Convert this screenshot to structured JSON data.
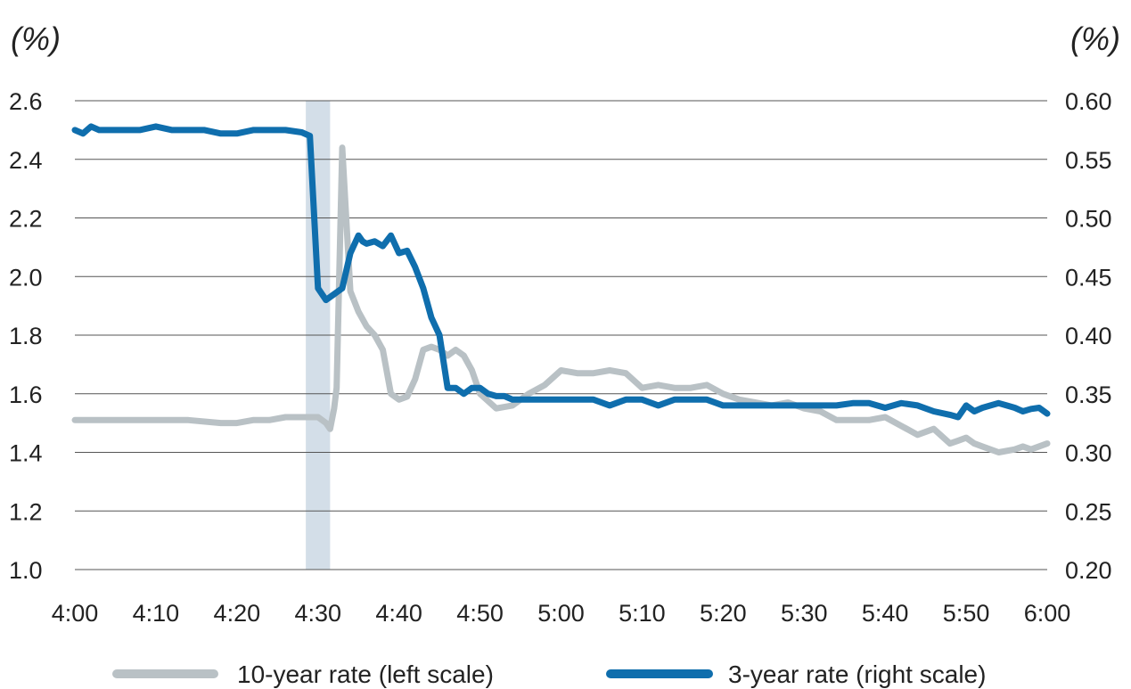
{
  "chart_data": {
    "type": "line",
    "left_unit": "(%)",
    "right_unit": "(%)",
    "x_ticks": [
      "4:00",
      "4:10",
      "4:20",
      "4:30",
      "4:40",
      "4:50",
      "5:00",
      "5:10",
      "5:20",
      "5:30",
      "5:40",
      "5:50",
      "6:00"
    ],
    "y_left_ticks": [
      "2.6",
      "2.4",
      "2.2",
      "2.0",
      "1.8",
      "1.6",
      "1.4",
      "1.2",
      "1.0"
    ],
    "y_right_ticks": [
      "0.60",
      "0.55",
      "0.50",
      "0.45",
      "0.40",
      "0.35",
      "0.30",
      "0.25",
      "0.20"
    ],
    "xlim_minutes": [
      0,
      120
    ],
    "ylim_left": [
      1.0,
      2.6
    ],
    "ylim_right": [
      0.2,
      0.6
    ],
    "grid": true,
    "legend_position": "bottom",
    "shaded_region_minutes": [
      28.5,
      31.5
    ],
    "colors": {
      "ten_year": "#b9c1c5",
      "three_year": "#0f6ead",
      "shade": "#d3dee8"
    },
    "series": [
      {
        "name": "10-year rate (left scale)",
        "axis": "left",
        "color": "#b9c1c5",
        "x": [
          0,
          5,
          10,
          14,
          18,
          20,
          22,
          24,
          26,
          28,
          30,
          31,
          31.5,
          32,
          32.3,
          33,
          34,
          35,
          36,
          37,
          38,
          39,
          40,
          41,
          42,
          43,
          44,
          45,
          46,
          47,
          48,
          49,
          50,
          52,
          54,
          56,
          58,
          60,
          62,
          64,
          66,
          68,
          70,
          72,
          74,
          76,
          78,
          80,
          82,
          84,
          86,
          88,
          90,
          92,
          94,
          96,
          98,
          100,
          102,
          104,
          106,
          108,
          109,
          110,
          111,
          112,
          114,
          116,
          117,
          118,
          120
        ],
        "y": [
          1.51,
          1.51,
          1.51,
          1.51,
          1.5,
          1.5,
          1.51,
          1.51,
          1.52,
          1.52,
          1.52,
          1.5,
          1.48,
          1.55,
          1.62,
          2.44,
          1.95,
          1.88,
          1.83,
          1.8,
          1.75,
          1.6,
          1.58,
          1.59,
          1.65,
          1.75,
          1.76,
          1.75,
          1.73,
          1.75,
          1.73,
          1.68,
          1.6,
          1.55,
          1.56,
          1.6,
          1.63,
          1.68,
          1.67,
          1.67,
          1.68,
          1.67,
          1.62,
          1.63,
          1.62,
          1.62,
          1.63,
          1.6,
          1.58,
          1.57,
          1.56,
          1.57,
          1.55,
          1.54,
          1.51,
          1.51,
          1.51,
          1.52,
          1.49,
          1.46,
          1.48,
          1.43,
          1.44,
          1.45,
          1.43,
          1.42,
          1.4,
          1.41,
          1.42,
          1.41,
          1.43
        ]
      },
      {
        "name": "3-year rate (right scale)",
        "axis": "right",
        "color": "#0f6ead",
        "x": [
          0,
          1,
          2,
          3,
          5,
          8,
          10,
          12,
          14,
          16,
          18,
          20,
          22,
          24,
          26,
          28,
          29,
          30,
          31,
          32,
          33,
          34,
          35,
          35.5,
          36,
          37,
          38,
          39,
          40,
          41,
          42,
          43,
          44,
          45,
          46,
          47,
          48,
          49,
          50,
          51,
          52,
          53,
          54,
          56,
          58,
          60,
          62,
          64,
          66,
          68,
          70,
          72,
          74,
          76,
          78,
          80,
          82,
          84,
          86,
          88,
          90,
          92,
          94,
          96,
          98,
          100,
          102,
          104,
          106,
          108,
          109,
          110,
          111,
          112,
          113,
          114,
          115,
          116,
          117,
          118,
          119,
          120
        ],
        "y": [
          0.575,
          0.572,
          0.578,
          0.575,
          0.575,
          0.575,
          0.578,
          0.575,
          0.575,
          0.575,
          0.572,
          0.572,
          0.575,
          0.575,
          0.575,
          0.573,
          0.57,
          0.44,
          0.43,
          0.435,
          0.44,
          0.47,
          0.485,
          0.48,
          0.478,
          0.48,
          0.476,
          0.485,
          0.47,
          0.472,
          0.458,
          0.44,
          0.415,
          0.4,
          0.355,
          0.355,
          0.35,
          0.355,
          0.355,
          0.35,
          0.348,
          0.348,
          0.345,
          0.345,
          0.345,
          0.345,
          0.345,
          0.345,
          0.34,
          0.345,
          0.345,
          0.34,
          0.345,
          0.345,
          0.345,
          0.34,
          0.34,
          0.34,
          0.34,
          0.34,
          0.34,
          0.34,
          0.34,
          0.342,
          0.342,
          0.338,
          0.342,
          0.34,
          0.335,
          0.332,
          0.33,
          0.34,
          0.335,
          0.338,
          0.34,
          0.342,
          0.34,
          0.338,
          0.335,
          0.337,
          0.338,
          0.333
        ]
      }
    ]
  }
}
